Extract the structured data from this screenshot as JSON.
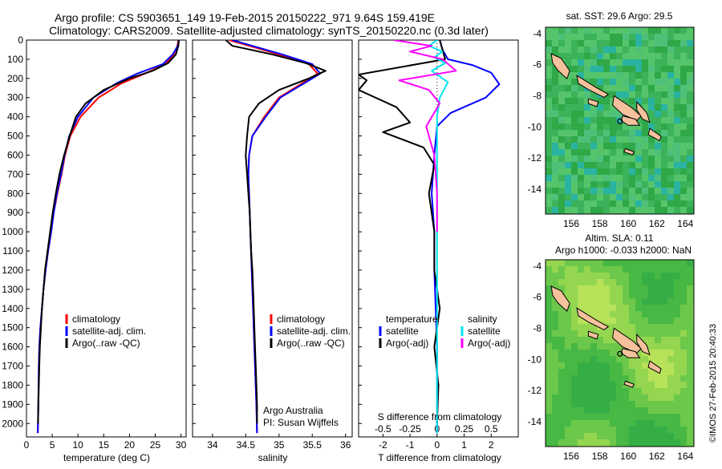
{
  "header": {
    "title_line1": "Argo profile: CS 5903651_149 19-Feb-2015 20150222_971 9.64S 159.419E",
    "title_line2": "Climatology: CARS2009. Satellite-adjusted climatology: synTS_20150220.nc (0.3d later)"
  },
  "colors": {
    "climatology": "#ff0000",
    "satellite": "#0000ff",
    "argo": "#000000",
    "sat_salinity": "#00e5ee",
    "argo_salinity": "#ff00ff",
    "land": "#f4c19c"
  },
  "chart_data": [
    {
      "id": "temperature",
      "type": "line",
      "xlabel": "temperature (deg C)",
      "ylabel": "",
      "xlim": [
        0,
        31
      ],
      "ylim": [
        2070,
        0
      ],
      "xticks": [
        0,
        5,
        10,
        15,
        20,
        25,
        30
      ],
      "yticks": [
        0,
        100,
        200,
        300,
        400,
        500,
        600,
        700,
        800,
        900,
        1000,
        1100,
        1200,
        1300,
        1400,
        1500,
        1600,
        1700,
        1800,
        1900,
        2000
      ],
      "legend": [
        "climatology",
        "satellite-adj. clim.",
        "Argo(..raw -QC)"
      ],
      "series": [
        {
          "name": "climatology",
          "color": "#ff0000",
          "x": [
            29.5,
            29.3,
            28.6,
            27.0,
            23.0,
            18.5,
            14.0,
            10.5,
            8.5,
            7.5,
            6.8,
            6.0,
            5.3,
            4.8,
            4.2,
            3.7,
            3.3,
            3.0,
            2.7,
            2.5,
            2.4,
            2.3,
            2.2
          ],
          "y": [
            0,
            30,
            75,
            125,
            175,
            225,
            300,
            400,
            500,
            600,
            700,
            800,
            900,
            1000,
            1100,
            1200,
            1300,
            1400,
            1500,
            1600,
            1700,
            1900,
            2050
          ]
        },
        {
          "name": "satellite-adj. clim.",
          "color": "#0000ff",
          "x": [
            29.6,
            29.4,
            28.4,
            26.5,
            21.5,
            17.5,
            13.0,
            10.0,
            8.3,
            7.4,
            6.7,
            5.9,
            5.3,
            4.8,
            4.2,
            3.7,
            3.3,
            3.0,
            2.7,
            2.5,
            2.4,
            2.3,
            2.2
          ],
          "y": [
            0,
            30,
            75,
            125,
            175,
            225,
            300,
            400,
            500,
            600,
            700,
            800,
            900,
            1000,
            1100,
            1200,
            1300,
            1400,
            1500,
            1600,
            1700,
            1900,
            2050
          ]
        },
        {
          "name": "Argo(..raw -QC)",
          "color": "#000000",
          "x": [
            29.6,
            29.5,
            29.0,
            27.5,
            24.5,
            20.0,
            15.0,
            11.5,
            9.6,
            8.4,
            7.3,
            6.4,
            5.7,
            5.1,
            4.6,
            4.1,
            3.6,
            3.3,
            3.0,
            2.8,
            2.6,
            2.5,
            2.4,
            2.3,
            2.25
          ],
          "y": [
            0,
            30,
            75,
            120,
            160,
            200,
            260,
            330,
            400,
            500,
            600,
            700,
            800,
            900,
            1000,
            1100,
            1200,
            1300,
            1400,
            1500,
            1600,
            1700,
            1800,
            1900,
            2000
          ]
        }
      ]
    },
    {
      "id": "salinity",
      "type": "line",
      "xlabel": "salinity",
      "ylabel": "",
      "xlim": [
        33.7,
        36.1
      ],
      "ylim": [
        2070,
        0
      ],
      "xticks": [
        34,
        34.5,
        35,
        35.5,
        36
      ],
      "legend": [
        "climatology",
        "satellite-adj. clim.",
        "Argo(..raw -QC)"
      ],
      "annotation": [
        "Argo Australia",
        "PI: Susan Wijffels"
      ],
      "series": [
        {
          "name": "climatology",
          "color": "#ff0000",
          "x": [
            34.25,
            34.55,
            35.0,
            35.45,
            35.58,
            35.35,
            35.0,
            34.78,
            34.6,
            34.55,
            34.54,
            34.55,
            34.56,
            34.57,
            34.58,
            34.59,
            34.6,
            34.61,
            34.62,
            34.63,
            34.64,
            34.66,
            34.67
          ],
          "y": [
            0,
            30,
            75,
            125,
            175,
            225,
            300,
            400,
            500,
            600,
            700,
            800,
            900,
            1000,
            1100,
            1200,
            1300,
            1400,
            1500,
            1600,
            1700,
            1900,
            2050
          ]
        },
        {
          "name": "satellite-adj. clim.",
          "color": "#0000ff",
          "x": [
            34.3,
            34.6,
            35.05,
            35.5,
            35.62,
            35.38,
            35.02,
            34.8,
            34.6,
            34.55,
            34.54,
            34.55,
            34.56,
            34.57,
            34.58,
            34.59,
            34.6,
            34.61,
            34.62,
            34.63,
            34.64,
            34.66,
            34.67
          ],
          "y": [
            0,
            30,
            75,
            125,
            175,
            225,
            300,
            400,
            500,
            600,
            700,
            800,
            900,
            1000,
            1100,
            1200,
            1300,
            1400,
            1500,
            1600,
            1700,
            1900,
            2050
          ]
        },
        {
          "name": "Argo(..raw -QC)",
          "color": "#000000",
          "x": [
            34.2,
            34.3,
            34.9,
            35.4,
            35.7,
            35.45,
            35.0,
            34.7,
            34.55,
            34.52,
            34.5,
            34.52,
            34.54,
            34.56,
            34.57,
            34.58,
            34.6,
            34.61,
            34.62,
            34.63,
            34.64,
            34.65,
            34.66,
            34.67,
            34.67
          ],
          "y": [
            0,
            30,
            75,
            120,
            160,
            200,
            260,
            330,
            400,
            500,
            600,
            700,
            800,
            900,
            1000,
            1100,
            1200,
            1300,
            1400,
            1500,
            1600,
            1700,
            1800,
            1900,
            2000
          ]
        }
      ]
    },
    {
      "id": "difference",
      "type": "line",
      "xlabel": "T difference from climatology",
      "top_label": "S difference from climatology",
      "xlim": [
        -2.9,
        3.0
      ],
      "ylim": [
        2070,
        0
      ],
      "xticks": [
        -2,
        -1,
        0,
        1,
        2
      ],
      "top_ticks": [
        "-0.5",
        "-0.25",
        "0",
        "0.25",
        "0.5"
      ],
      "top_tick_positions_T": [
        -2,
        -1,
        0,
        1,
        2
      ],
      "legend_temperature": {
        "heading": "temperature",
        "items": [
          "satellite",
          "Argo(-adj)"
        ]
      },
      "legend_salinity": {
        "heading": "salinity",
        "items": [
          "satellite",
          "Argo(-adj)"
        ]
      },
      "series": [
        {
          "name": "T satellite",
          "color": "#0000ff",
          "x": [
            0.1,
            0.2,
            0.4,
            1.3,
            2.0,
            2.3,
            1.8,
            0.5,
            0.0,
            -0.1,
            -0.2,
            -0.1,
            -0.1,
            -0.05,
            0.0,
            0.0,
            0.0
          ],
          "y": [
            0,
            50,
            100,
            130,
            170,
            230,
            300,
            380,
            450,
            600,
            800,
            1000,
            1200,
            1400,
            1600,
            1800,
            2050
          ]
        },
        {
          "name": "T Argo(-adj)",
          "color": "#000000",
          "x": [
            0.1,
            0.2,
            0.3,
            -2.9,
            -2.6,
            -2.9,
            -1.5,
            -1.0,
            -2.0,
            -0.5,
            -0.1,
            -0.3,
            -0.1,
            -0.1,
            0.1,
            -0.1,
            0.05,
            0.0
          ],
          "y": [
            0,
            50,
            100,
            180,
            210,
            260,
            350,
            430,
            480,
            560,
            650,
            800,
            1000,
            1200,
            1400,
            1600,
            1800,
            2000
          ]
        },
        {
          "name": "S satellite",
          "color": "#00e5ee",
          "x": [
            0.0,
            -0.3,
            0.2,
            -0.1,
            0.3,
            -0.2,
            0.4,
            0.1,
            0.0,
            0.0,
            0.0,
            0.0,
            0.0,
            0.0,
            0.0,
            0.0
          ],
          "y": [
            0,
            30,
            60,
            90,
            120,
            160,
            220,
            300,
            400,
            600,
            800,
            1000,
            1200,
            1500,
            1800,
            2050
          ]
        },
        {
          "name": "S Argo(-adj)",
          "color": "#ff00ff",
          "x": [
            -1.6,
            -0.2,
            -1.0,
            0.2,
            0.7,
            -1.4,
            -0.3,
            0.1,
            -0.4,
            -0.1,
            0.0,
            0.0
          ],
          "y": [
            0,
            30,
            60,
            100,
            160,
            210,
            260,
            330,
            450,
            600,
            800,
            1000
          ]
        }
      ]
    },
    {
      "id": "sst_map",
      "type": "heatmap",
      "title": "sat. SST: 29.6  Argo: 29.5",
      "xticks": [
        156,
        158,
        160,
        162,
        164
      ],
      "yticks": [
        -4,
        -6,
        -8,
        -10,
        -12,
        -14
      ],
      "xlim": [
        154.2,
        164.6
      ],
      "ylim": [
        -15.6,
        -3.6
      ],
      "argo_position": {
        "lon": 159.419,
        "lat": -9.64
      }
    },
    {
      "id": "sla_map",
      "type": "heatmap",
      "title_line1": "Altim. SLA: 0.11",
      "title_line2": "Argo h1000: -0.033 h2000: NaN",
      "xticks": [
        156,
        158,
        160,
        162,
        164
      ],
      "yticks": [
        -4,
        -6,
        -8,
        -10,
        -12,
        -14
      ],
      "xlim": [
        154.2,
        164.6
      ],
      "ylim": [
        -15.6,
        -3.6
      ],
      "argo_position": {
        "lon": 159.419,
        "lat": -9.64
      }
    }
  ],
  "footer": {
    "credit": "©IMOS 27-Feb-2015 20:40:33"
  }
}
